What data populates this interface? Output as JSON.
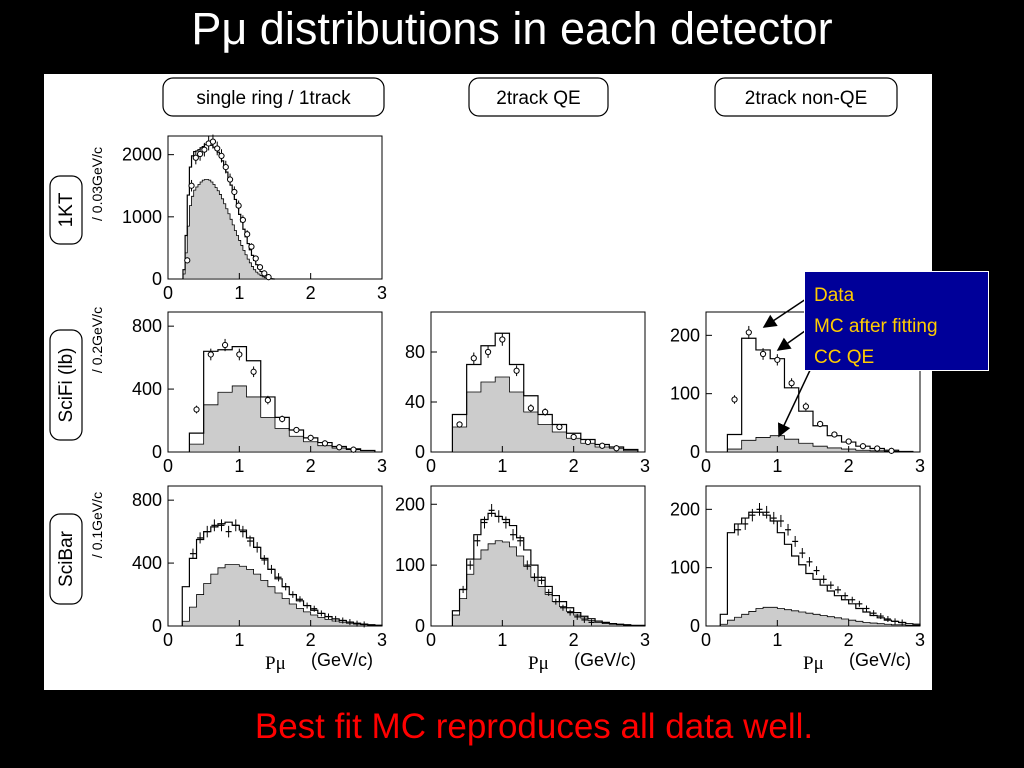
{
  "slide": {
    "title": "Pμ distributions in each detector",
    "caption": "Best fit MC reproduces all data well."
  },
  "colors": {
    "background": "#000000",
    "title": "#ffffff",
    "caption": "#ff0000",
    "legend_background": "#000099",
    "legend_text": "#ffcc00",
    "ccqe_fill": "#cccccc"
  },
  "legend": {
    "items": [
      "Data",
      "MC after fitting",
      "CC QE"
    ]
  },
  "columns": [
    "single ring / 1track",
    "2track QE",
    "2track non-QE"
  ],
  "rows": [
    {
      "label": "1KT",
      "ylabel": "/ 0.03GeV/c"
    },
    {
      "label": "SciFi (lb)",
      "ylabel": "/ 0.2GeV/c"
    },
    {
      "label": "SciBar",
      "ylabel": "/ 0.1GeV/c"
    }
  ],
  "axis": {
    "x_title": "Pμ",
    "x_unit": "(GeV/c)"
  },
  "chart_data": [
    {
      "id": "1kt-single",
      "type": "histogram",
      "row": 0,
      "col": 0,
      "xlim": [
        0,
        3
      ],
      "ylim": [
        0,
        2300
      ],
      "xticks": [
        0,
        1,
        2,
        3
      ],
      "yticks": [
        0,
        1000,
        2000
      ],
      "xtick_labels": [
        "0",
        "1",
        "2",
        "3"
      ],
      "ytick_labels": [
        "0",
        "1000",
        "2000"
      ],
      "show_xtitle": false,
      "data_marker": "circle",
      "bin_edges": [
        0.21,
        0.24,
        0.27,
        0.3,
        0.33,
        0.36,
        0.39,
        0.42,
        0.45,
        0.48,
        0.51,
        0.54,
        0.57,
        0.6,
        0.63,
        0.66,
        0.69,
        0.72,
        0.75,
        0.78,
        0.81,
        0.84,
        0.87,
        0.9,
        0.93,
        0.96,
        0.99,
        1.02,
        1.05,
        1.08,
        1.11,
        1.14,
        1.17,
        1.2,
        1.23,
        1.26,
        1.29,
        1.32,
        1.35,
        1.38,
        1.41,
        1.44,
        1.47,
        1.5
      ],
      "series": [
        {
          "name": "MC after fitting",
          "style": "step",
          "values": [
            150,
            700,
            1350,
            1800,
            1980,
            2050,
            2060,
            2080,
            2110,
            2130,
            2160,
            2180,
            2170,
            2150,
            2120,
            2080,
            2040,
            1980,
            1900,
            1810,
            1720,
            1620,
            1510,
            1400,
            1280,
            1160,
            1040,
            920,
            800,
            680,
            570,
            470,
            380,
            300,
            230,
            170,
            120,
            80,
            50,
            30,
            15,
            5,
            0
          ]
        },
        {
          "name": "CC QE",
          "style": "filled",
          "values": [
            80,
            420,
            850,
            1180,
            1330,
            1430,
            1480,
            1520,
            1560,
            1590,
            1600,
            1600,
            1590,
            1560,
            1520,
            1470,
            1420,
            1360,
            1290,
            1210,
            1130,
            1050,
            960,
            870,
            780,
            700,
            620,
            540,
            460,
            390,
            320,
            260,
            200,
            150,
            110,
            80,
            55,
            35,
            20,
            10,
            5,
            2,
            0
          ]
        },
        {
          "name": "Data",
          "style": "points",
          "x": [
            0.27,
            0.33,
            0.39,
            0.45,
            0.51,
            0.57,
            0.63,
            0.69,
            0.75,
            0.81,
            0.87,
            0.93,
            0.99,
            1.05,
            1.11,
            1.17,
            1.23,
            1.29,
            1.35,
            1.41
          ],
          "values": [
            300,
            1500,
            1950,
            2010,
            2080,
            2180,
            2210,
            2100,
            1980,
            1800,
            1600,
            1400,
            1180,
            950,
            720,
            520,
            330,
            190,
            90,
            30
          ]
        }
      ]
    },
    {
      "id": "scifi-single",
      "type": "histogram",
      "row": 1,
      "col": 0,
      "xlim": [
        0,
        3
      ],
      "ylim": [
        0,
        890
      ],
      "xticks": [
        0,
        1,
        2,
        3
      ],
      "yticks": [
        0,
        400,
        800
      ],
      "xtick_labels": [
        "0",
        "1",
        "2",
        "3"
      ],
      "ytick_labels": [
        "0",
        "400",
        "800"
      ],
      "show_xtitle": false,
      "data_marker": "circle",
      "bin_edges": [
        0.3,
        0.5,
        0.7,
        0.9,
        1.1,
        1.3,
        1.5,
        1.7,
        1.9,
        2.1,
        2.3,
        2.5,
        2.7,
        2.9
      ],
      "series": [
        {
          "name": "MC after fitting",
          "style": "step",
          "values": [
            120,
            640,
            650,
            670,
            580,
            350,
            220,
            140,
            90,
            60,
            35,
            20,
            10
          ]
        },
        {
          "name": "CC QE",
          "style": "filled",
          "values": [
            50,
            300,
            380,
            420,
            350,
            220,
            150,
            100,
            65,
            40,
            25,
            15,
            8
          ]
        },
        {
          "name": "Data",
          "style": "points",
          "x": [
            0.4,
            0.6,
            0.8,
            1.0,
            1.2,
            1.4,
            1.6,
            1.8,
            2.0,
            2.2,
            2.4,
            2.6
          ],
          "values": [
            270,
            620,
            680,
            620,
            510,
            330,
            210,
            140,
            90,
            55,
            30,
            15
          ]
        }
      ]
    },
    {
      "id": "scifi-2trackqe",
      "type": "histogram",
      "row": 1,
      "col": 1,
      "xlim": [
        0,
        3
      ],
      "ylim": [
        0,
        112
      ],
      "xticks": [
        0,
        1,
        2,
        3
      ],
      "yticks": [
        0,
        40,
        80
      ],
      "xtick_labels": [
        "0",
        "1",
        "2",
        "3"
      ],
      "ytick_labels": [
        "0",
        "40",
        "80"
      ],
      "show_xtitle": false,
      "data_marker": "circle",
      "bin_edges": [
        0.3,
        0.5,
        0.7,
        0.9,
        1.1,
        1.3,
        1.5,
        1.7,
        1.9,
        2.1,
        2.3,
        2.5,
        2.7,
        2.9
      ],
      "series": [
        {
          "name": "MC after fitting",
          "style": "step",
          "values": [
            30,
            70,
            85,
            95,
            70,
            45,
            30,
            22,
            15,
            10,
            6,
            4,
            2
          ]
        },
        {
          "name": "CC QE",
          "style": "filled",
          "values": [
            20,
            48,
            56,
            60,
            48,
            32,
            22,
            16,
            11,
            7,
            4,
            3,
            1
          ]
        },
        {
          "name": "Data",
          "style": "points",
          "x": [
            0.4,
            0.6,
            0.8,
            1.0,
            1.2,
            1.4,
            1.6,
            1.8,
            2.0,
            2.2,
            2.4,
            2.6
          ],
          "values": [
            22,
            75,
            80,
            90,
            65,
            35,
            32,
            20,
            12,
            8,
            5,
            3
          ]
        }
      ]
    },
    {
      "id": "scifi-2tracknonqe",
      "type": "histogram",
      "row": 1,
      "col": 2,
      "xlim": [
        0,
        3
      ],
      "ylim": [
        0,
        240
      ],
      "xticks": [
        0,
        1,
        2,
        3
      ],
      "yticks": [
        0,
        100,
        200
      ],
      "xtick_labels": [
        "0",
        "1",
        "2",
        "3"
      ],
      "ytick_labels": [
        "0",
        "100",
        "200"
      ],
      "show_xtitle": false,
      "data_marker": "circle",
      "bin_edges": [
        0.3,
        0.5,
        0.7,
        0.9,
        1.1,
        1.3,
        1.5,
        1.7,
        1.9,
        2.1,
        2.3,
        2.5,
        2.7,
        2.9
      ],
      "series": [
        {
          "name": "MC after fitting",
          "style": "step",
          "values": [
            30,
            195,
            175,
            160,
            110,
            70,
            45,
            28,
            17,
            10,
            6,
            3,
            1
          ]
        },
        {
          "name": "CC QE",
          "style": "filled",
          "values": [
            5,
            20,
            25,
            28,
            22,
            15,
            10,
            7,
            5,
            3,
            2,
            1,
            0
          ]
        },
        {
          "name": "Data",
          "style": "points",
          "x": [
            0.4,
            0.6,
            0.8,
            1.0,
            1.2,
            1.4,
            1.6,
            1.8,
            2.0,
            2.2,
            2.4,
            2.6
          ],
          "values": [
            90,
            205,
            168,
            158,
            118,
            78,
            48,
            30,
            18,
            10,
            6,
            2
          ]
        }
      ]
    },
    {
      "id": "scibar-single",
      "type": "histogram",
      "row": 2,
      "col": 0,
      "xlim": [
        0,
        3
      ],
      "ylim": [
        0,
        890
      ],
      "xticks": [
        0,
        1,
        2,
        3
      ],
      "yticks": [
        0,
        400,
        800
      ],
      "xtick_labels": [
        "0",
        "1",
        "2",
        "3"
      ],
      "ytick_labels": [
        "0",
        "400",
        "800"
      ],
      "show_xtitle": true,
      "data_marker": "cross",
      "bin_edges": [
        0.2,
        0.3,
        0.4,
        0.5,
        0.6,
        0.7,
        0.8,
        0.9,
        1.0,
        1.1,
        1.2,
        1.3,
        1.4,
        1.5,
        1.6,
        1.7,
        1.8,
        1.9,
        2.0,
        2.1,
        2.2,
        2.3,
        2.4,
        2.5,
        2.6,
        2.7,
        2.8,
        2.9,
        3.0
      ],
      "series": [
        {
          "name": "MC after fitting",
          "style": "step",
          "values": [
            250,
            430,
            550,
            600,
            630,
            650,
            660,
            640,
            610,
            560,
            500,
            430,
            360,
            300,
            250,
            200,
            160,
            130,
            100,
            80,
            60,
            45,
            35,
            25,
            18,
            12,
            8,
            5
          ]
        },
        {
          "name": "CC QE",
          "style": "filled",
          "values": [
            30,
            120,
            200,
            270,
            330,
            370,
            390,
            390,
            380,
            360,
            330,
            290,
            250,
            210,
            175,
            140,
            112,
            90,
            70,
            55,
            42,
            32,
            24,
            18,
            12,
            8,
            5,
            3
          ]
        },
        {
          "name": "Data",
          "style": "points",
          "x": [
            0.35,
            0.45,
            0.55,
            0.65,
            0.75,
            0.85,
            0.95,
            1.05,
            1.15,
            1.25,
            1.35,
            1.45,
            1.55,
            1.65,
            1.75,
            1.85,
            1.95,
            2.05,
            2.15,
            2.25,
            2.35,
            2.45,
            2.55,
            2.65,
            2.75
          ],
          "values": [
            460,
            560,
            600,
            640,
            640,
            600,
            640,
            600,
            540,
            500,
            420,
            360,
            310,
            250,
            200,
            170,
            130,
            110,
            80,
            60,
            45,
            35,
            25,
            15,
            10
          ]
        }
      ]
    },
    {
      "id": "scibar-2trackqe",
      "type": "histogram",
      "row": 2,
      "col": 1,
      "xlim": [
        0,
        3
      ],
      "ylim": [
        0,
        230
      ],
      "xticks": [
        0,
        1,
        2,
        3
      ],
      "yticks": [
        0,
        100,
        200
      ],
      "xtick_labels": [
        "0",
        "1",
        "2",
        "3"
      ],
      "ytick_labels": [
        "0",
        "100",
        "200"
      ],
      "show_xtitle": true,
      "data_marker": "cross",
      "bin_edges": [
        0.3,
        0.4,
        0.5,
        0.6,
        0.7,
        0.8,
        0.9,
        1.0,
        1.1,
        1.2,
        1.3,
        1.4,
        1.5,
        1.6,
        1.7,
        1.8,
        1.9,
        2.0,
        2.1,
        2.2,
        2.3,
        2.4,
        2.5,
        2.6,
        2.7,
        2.8,
        2.9,
        3.0
      ],
      "series": [
        {
          "name": "MC after fitting",
          "style": "step",
          "values": [
            25,
            60,
            110,
            150,
            175,
            185,
            180,
            175,
            165,
            145,
            125,
            100,
            80,
            65,
            50,
            40,
            30,
            22,
            16,
            12,
            8,
            6,
            4,
            3,
            2,
            1,
            1
          ]
        },
        {
          "name": "CC QE",
          "style": "filled",
          "values": [
            18,
            45,
            85,
            110,
            125,
            135,
            140,
            138,
            130,
            115,
            98,
            80,
            65,
            52,
            40,
            32,
            24,
            18,
            13,
            9,
            6,
            4,
            3,
            2,
            1,
            1,
            0
          ]
        },
        {
          "name": "Data",
          "style": "points",
          "x": [
            0.45,
            0.55,
            0.65,
            0.75,
            0.85,
            0.95,
            1.05,
            1.15,
            1.25,
            1.35,
            1.45,
            1.55,
            1.65,
            1.75,
            1.85,
            1.95,
            2.05,
            2.15,
            2.25
          ],
          "values": [
            60,
            100,
            140,
            170,
            190,
            180,
            170,
            150,
            140,
            100,
            80,
            75,
            55,
            40,
            30,
            22,
            15,
            10,
            6
          ]
        }
      ]
    },
    {
      "id": "scibar-2tracknonqe",
      "type": "histogram",
      "row": 2,
      "col": 2,
      "xlim": [
        0,
        3
      ],
      "ylim": [
        0,
        240
      ],
      "xticks": [
        0,
        1,
        2,
        3
      ],
      "yticks": [
        0,
        100,
        200
      ],
      "xtick_labels": [
        "0",
        "1",
        "2",
        "3"
      ],
      "ytick_labels": [
        "0",
        "100",
        "200"
      ],
      "show_xtitle": true,
      "data_marker": "cross",
      "bin_edges": [
        0.2,
        0.3,
        0.4,
        0.5,
        0.6,
        0.7,
        0.8,
        0.9,
        1.0,
        1.1,
        1.2,
        1.3,
        1.4,
        1.5,
        1.6,
        1.7,
        1.8,
        1.9,
        2.0,
        2.1,
        2.2,
        2.3,
        2.4,
        2.5,
        2.6,
        2.7,
        2.8,
        2.9,
        3.0
      ],
      "series": [
        {
          "name": "MC after fitting",
          "style": "step",
          "values": [
            20,
            160,
            175,
            185,
            195,
            195,
            190,
            180,
            160,
            140,
            120,
            105,
            90,
            80,
            70,
            60,
            52,
            45,
            38,
            30,
            24,
            18,
            14,
            10,
            8,
            6,
            4,
            3
          ]
        },
        {
          "name": "CC QE",
          "style": "filled",
          "values": [
            3,
            10,
            15,
            20,
            25,
            30,
            32,
            32,
            30,
            28,
            26,
            24,
            22,
            20,
            18,
            16,
            14,
            12,
            10,
            8,
            6,
            5,
            4,
            3,
            2,
            2,
            1,
            1
          ]
        },
        {
          "name": "Data",
          "style": "points",
          "x": [
            0.45,
            0.55,
            0.65,
            0.75,
            0.85,
            0.95,
            1.05,
            1.15,
            1.25,
            1.35,
            1.45,
            1.55,
            1.65,
            1.75,
            1.85,
            1.95,
            2.05,
            2.15,
            2.25,
            2.35,
            2.45,
            2.55,
            2.65,
            2.75
          ],
          "values": [
            165,
            175,
            190,
            200,
            195,
            185,
            180,
            165,
            145,
            125,
            110,
            95,
            80,
            70,
            62,
            52,
            45,
            38,
            30,
            22,
            17,
            12,
            8,
            6
          ]
        }
      ]
    }
  ]
}
